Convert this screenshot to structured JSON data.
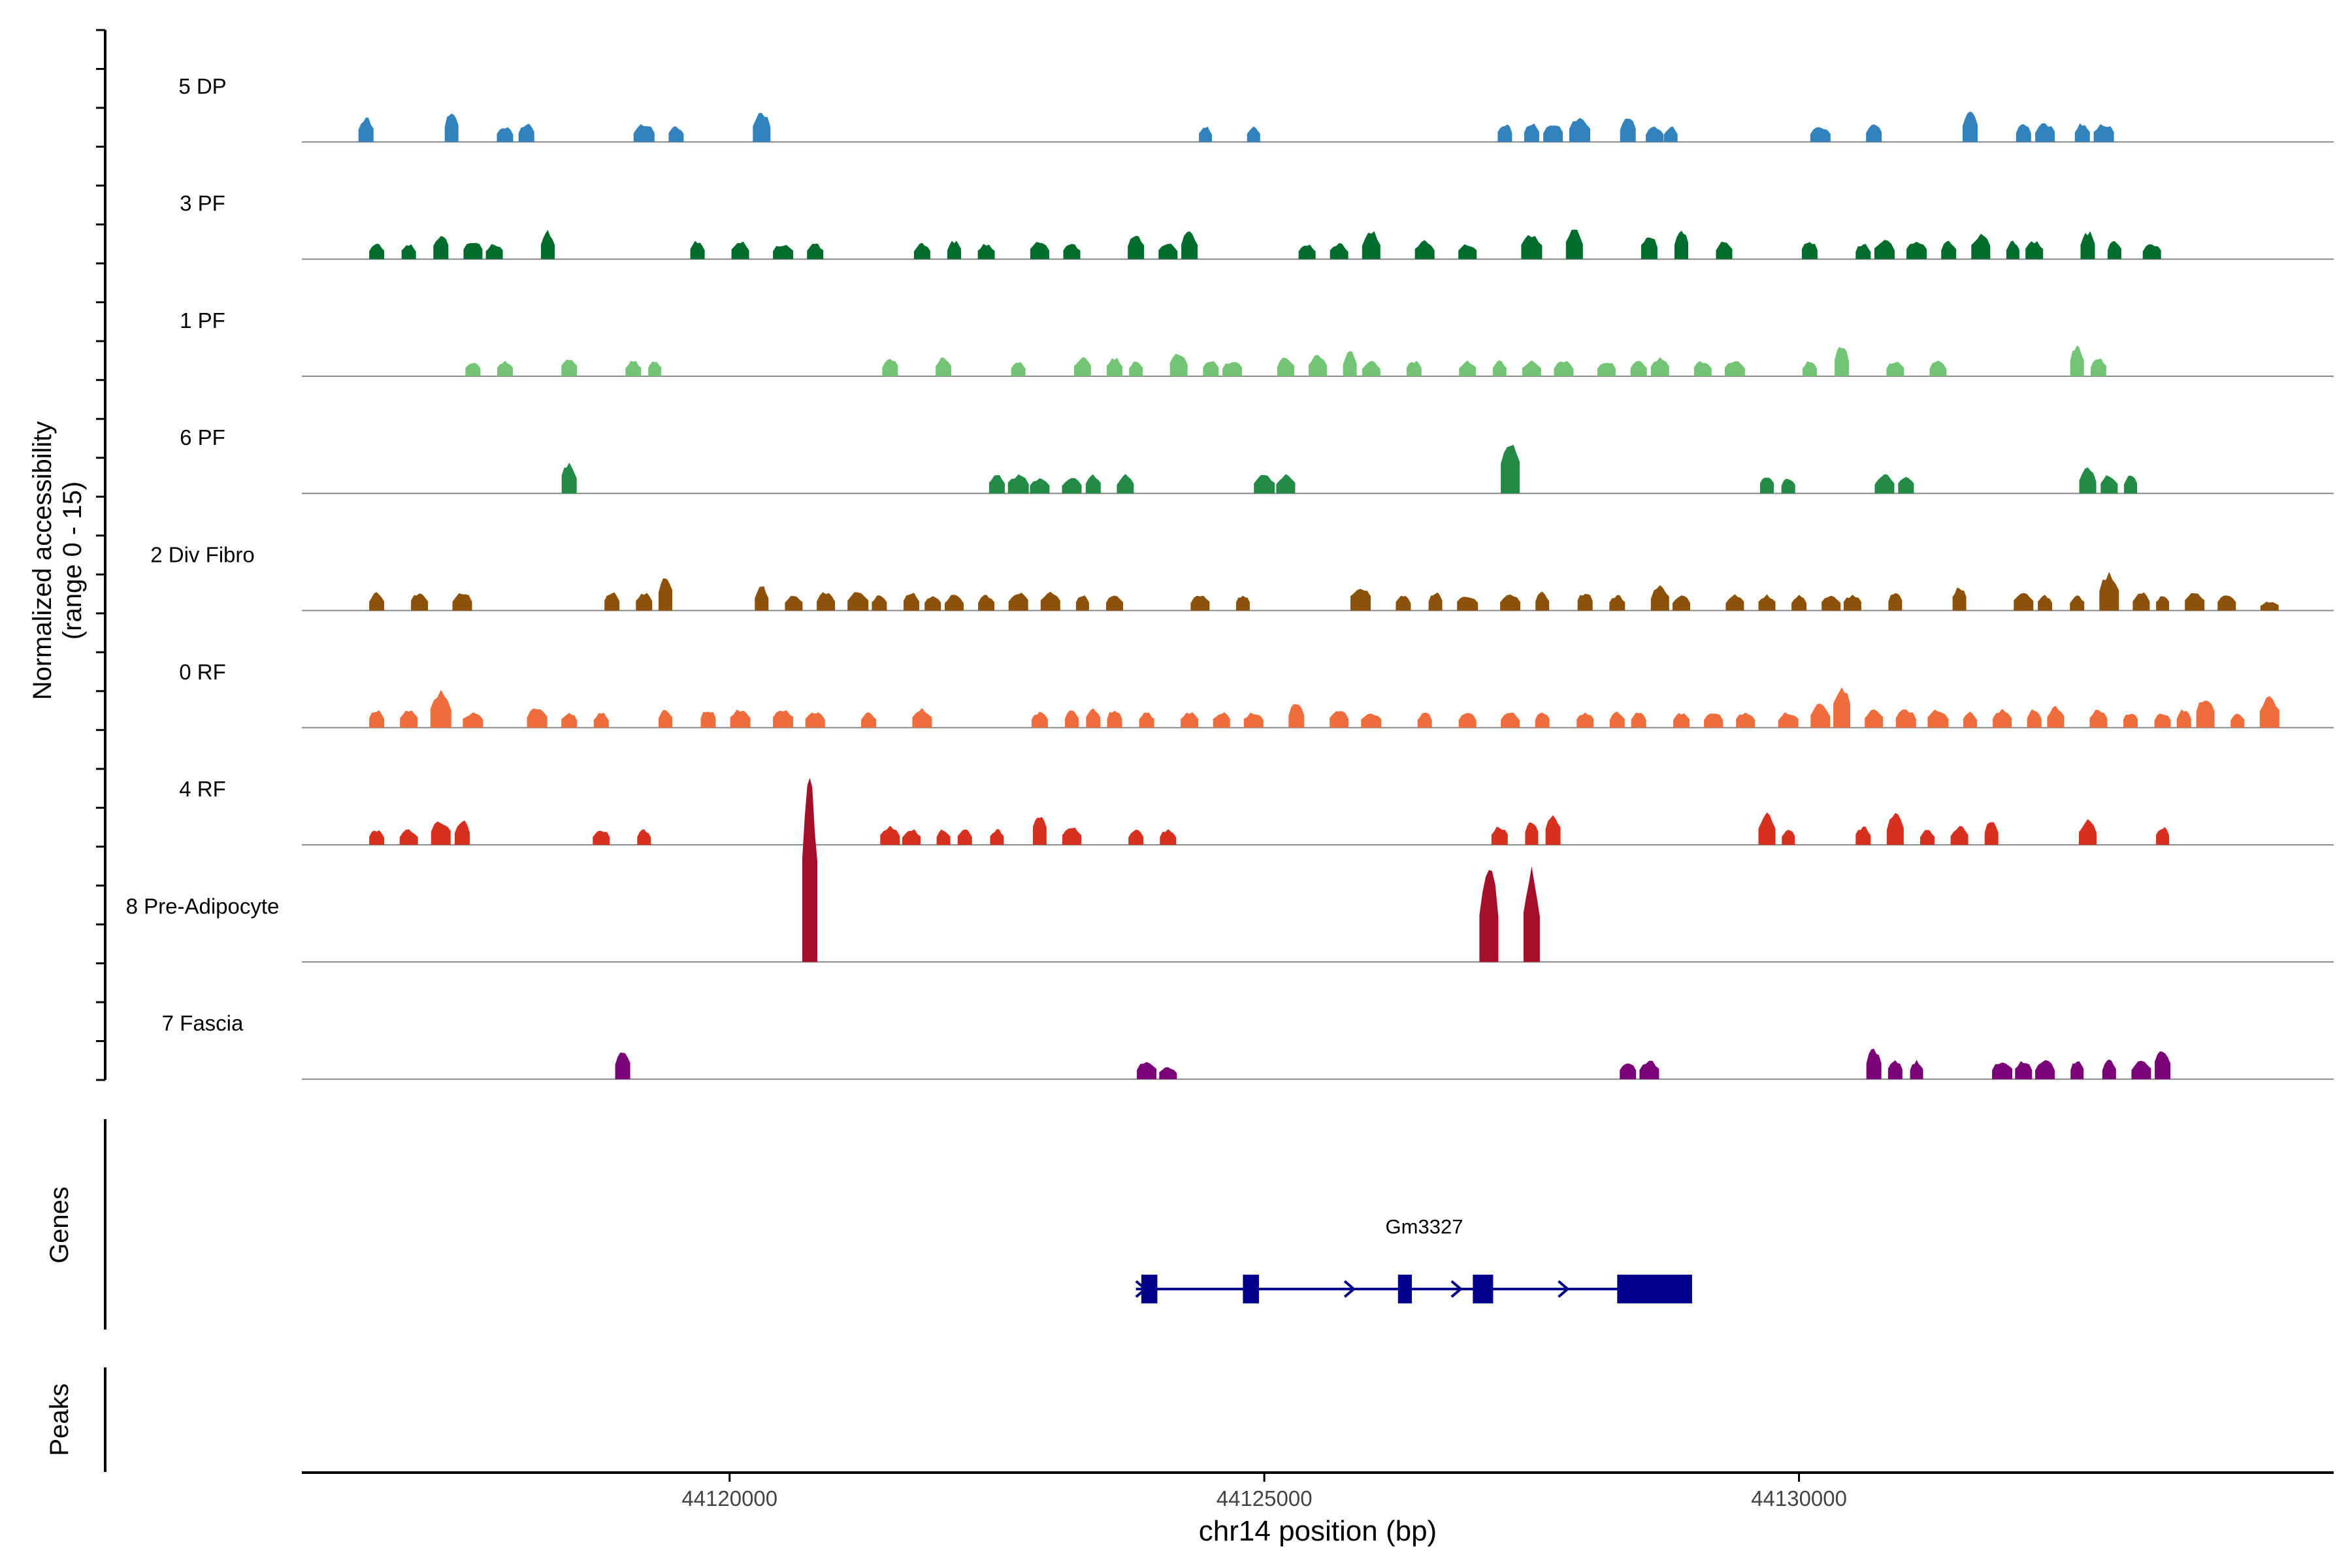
{
  "chart_data": {
    "type": "area",
    "title": "",
    "ylabel": "Normalized accessibility",
    "ylabel_range": "(range 0 - 15)",
    "ylim": [
      0,
      15
    ],
    "xlabel": "chr14 position (bp)",
    "xlim": [
      44116000,
      44135000
    ],
    "x_ticks": [
      44120000,
      44125000,
      44130000
    ],
    "x_tick_labels": [
      "44120000",
      "44125000",
      "44130000"
    ],
    "tracks": [
      {
        "name": "5 DP",
        "color": "#3182BD",
        "seed": 11,
        "peaks": [
          [
            44116600,
            4
          ],
          [
            44117400,
            5
          ],
          [
            44117900,
            2.5
          ],
          [
            44118100,
            3
          ],
          [
            44119200,
            3
          ],
          [
            44119500,
            2.5
          ],
          [
            44120300,
            5
          ],
          [
            44124450,
            2.5
          ],
          [
            44124900,
            2.5
          ],
          [
            44127250,
            3
          ],
          [
            44127500,
            3
          ],
          [
            44127700,
            3
          ],
          [
            44127950,
            4
          ],
          [
            44128400,
            4
          ],
          [
            44128650,
            2.5
          ],
          [
            44128800,
            2.5
          ],
          [
            44130200,
            2.5
          ],
          [
            44130700,
            3
          ],
          [
            44131600,
            5
          ],
          [
            44132100,
            3
          ],
          [
            44132300,
            3
          ],
          [
            44132650,
            3
          ],
          [
            44132850,
            3
          ]
        ]
      },
      {
        "name": "3 PF",
        "color": "#006D2C",
        "seed": 23,
        "peaks": [
          [
            44116700,
            2.5
          ],
          [
            44117000,
            2.5
          ],
          [
            44117300,
            4
          ],
          [
            44117600,
            3
          ],
          [
            44117800,
            2.5
          ],
          [
            44118300,
            4.5
          ],
          [
            44119700,
            3
          ],
          [
            44120100,
            3
          ],
          [
            44120500,
            2.5
          ],
          [
            44120800,
            2.5
          ],
          [
            44121800,
            2.5
          ],
          [
            44122100,
            3
          ],
          [
            44122400,
            2.5
          ],
          [
            44122900,
            3
          ],
          [
            44123200,
            2.5
          ],
          [
            44123800,
            4
          ],
          [
            44124100,
            2.5
          ],
          [
            44124300,
            4.5
          ],
          [
            44125400,
            2.5
          ],
          [
            44125700,
            2.5
          ],
          [
            44126000,
            4.5
          ],
          [
            44126500,
            3
          ],
          [
            44126900,
            2.5
          ],
          [
            44127500,
            4
          ],
          [
            44127900,
            5
          ],
          [
            44128600,
            4
          ],
          [
            44128900,
            5
          ],
          [
            44129300,
            3
          ],
          [
            44130100,
            3
          ],
          [
            44130600,
            2.5
          ],
          [
            44130800,
            3
          ],
          [
            44131100,
            3
          ],
          [
            44131400,
            3
          ],
          [
            44131700,
            4
          ],
          [
            44132000,
            3
          ],
          [
            44132200,
            3
          ],
          [
            44132700,
            4.5
          ],
          [
            44132950,
            3
          ],
          [
            44133300,
            2.5
          ]
        ]
      },
      {
        "name": "1 PF",
        "color": "#74C476",
        "seed": 37,
        "peaks": [
          [
            44117600,
            2.5
          ],
          [
            44117900,
            2.5
          ],
          [
            44118500,
            3
          ],
          [
            44119100,
            2.5
          ],
          [
            44119300,
            2.5
          ],
          [
            44121500,
            3
          ],
          [
            44122000,
            3
          ],
          [
            44122700,
            2.5
          ],
          [
            44123300,
            3
          ],
          [
            44123600,
            3
          ],
          [
            44123800,
            2.5
          ],
          [
            44124200,
            4
          ],
          [
            44124500,
            2.5
          ],
          [
            44124700,
            2.5
          ],
          [
            44125200,
            3
          ],
          [
            44125500,
            3.5
          ],
          [
            44125800,
            4
          ],
          [
            44126000,
            2.5
          ],
          [
            44126400,
            2.5
          ],
          [
            44126900,
            2.5
          ],
          [
            44127200,
            2.5
          ],
          [
            44127500,
            2.5
          ],
          [
            44127800,
            2.5
          ],
          [
            44128200,
            2.5
          ],
          [
            44128500,
            2.5
          ],
          [
            44128700,
            3
          ],
          [
            44129100,
            2.5
          ],
          [
            44129400,
            2.5
          ],
          [
            44130100,
            2.5
          ],
          [
            44130400,
            5
          ],
          [
            44130900,
            2.5
          ],
          [
            44131300,
            2.5
          ],
          [
            44132600,
            5
          ],
          [
            44132800,
            3
          ]
        ]
      },
      {
        "name": "6 PF",
        "color": "#238B45",
        "seed": 41,
        "peaks": [
          [
            44118500,
            5
          ],
          [
            44122500,
            3
          ],
          [
            44122700,
            3
          ],
          [
            44122900,
            2.5
          ],
          [
            44123200,
            2.5
          ],
          [
            44123400,
            3
          ],
          [
            44123700,
            3
          ],
          [
            44125000,
            3
          ],
          [
            44125200,
            3
          ],
          [
            44127300,
            9
          ],
          [
            44129700,
            3
          ],
          [
            44129900,
            2.5
          ],
          [
            44130800,
            3
          ],
          [
            44131000,
            3
          ],
          [
            44132700,
            4
          ],
          [
            44132900,
            3
          ],
          [
            44133100,
            3
          ]
        ]
      },
      {
        "name": "2 Div Fibro",
        "color": "#8C510A",
        "seed": 53,
        "peaks": [
          [
            44116700,
            3
          ],
          [
            44117100,
            3
          ],
          [
            44117500,
            3
          ],
          [
            44118900,
            3
          ],
          [
            44119200,
            3
          ],
          [
            44119400,
            6
          ],
          [
            44120300,
            4
          ],
          [
            44120600,
            2.5
          ],
          [
            44120900,
            3
          ],
          [
            44121200,
            3
          ],
          [
            44121400,
            2.5
          ],
          [
            44121700,
            3
          ],
          [
            44121900,
            2.5
          ],
          [
            44122100,
            2.5
          ],
          [
            44122400,
            2.5
          ],
          [
            44122700,
            3
          ],
          [
            44123000,
            3
          ],
          [
            44123300,
            2.5
          ],
          [
            44123600,
            2.5
          ],
          [
            44124400,
            2.5
          ],
          [
            44124800,
            2.5
          ],
          [
            44125900,
            4
          ],
          [
            44126300,
            2.5
          ],
          [
            44126600,
            3
          ],
          [
            44126900,
            2.5
          ],
          [
            44127300,
            2.5
          ],
          [
            44127600,
            3
          ],
          [
            44128000,
            3
          ],
          [
            44128300,
            2.5
          ],
          [
            44128700,
            4
          ],
          [
            44128900,
            2.5
          ],
          [
            44129400,
            2.5
          ],
          [
            44129700,
            2.5
          ],
          [
            44130000,
            2.5
          ],
          [
            44130300,
            2.5
          ],
          [
            44130500,
            2.5
          ],
          [
            44130900,
            3
          ],
          [
            44131500,
            4
          ],
          [
            44132100,
            3
          ],
          [
            44132300,
            2.5
          ],
          [
            44132600,
            2.5
          ],
          [
            44132900,
            6
          ],
          [
            44133200,
            3
          ],
          [
            44133400,
            2.5
          ],
          [
            44133700,
            3
          ],
          [
            44134000,
            2.5
          ],
          [
            44134400,
            1.5
          ]
        ]
      },
      {
        "name": "0 RF",
        "color": "#EF6C3D",
        "seed": 67,
        "peaks": [
          [
            44116700,
            3
          ],
          [
            44117000,
            3
          ],
          [
            44117300,
            6
          ],
          [
            44117600,
            2.5
          ],
          [
            44118200,
            3.5
          ],
          [
            44118500,
            2.5
          ],
          [
            44118800,
            2.5
          ],
          [
            44119400,
            3
          ],
          [
            44119800,
            3
          ],
          [
            44120100,
            3
          ],
          [
            44120500,
            3
          ],
          [
            44120800,
            2.5
          ],
          [
            44121300,
            2.5
          ],
          [
            44121800,
            3
          ],
          [
            44122900,
            2.5
          ],
          [
            44123200,
            3
          ],
          [
            44123400,
            3
          ],
          [
            44123600,
            3
          ],
          [
            44123900,
            2.5
          ],
          [
            44124300,
            2.5
          ],
          [
            44124600,
            2.5
          ],
          [
            44124900,
            2.5
          ],
          [
            44125300,
            4
          ],
          [
            44125700,
            3
          ],
          [
            44126000,
            2.5
          ],
          [
            44126500,
            2.5
          ],
          [
            44126900,
            2.5
          ],
          [
            44127300,
            2.5
          ],
          [
            44127600,
            2.5
          ],
          [
            44128000,
            2.5
          ],
          [
            44128300,
            2.5
          ],
          [
            44128500,
            2.5
          ],
          [
            44128900,
            2.5
          ],
          [
            44129200,
            2.5
          ],
          [
            44129500,
            2.5
          ],
          [
            44129900,
            2.5
          ],
          [
            44130200,
            4
          ],
          [
            44130400,
            7
          ],
          [
            44130700,
            3
          ],
          [
            44131000,
            3
          ],
          [
            44131300,
            3
          ],
          [
            44131600,
            2.5
          ],
          [
            44131900,
            3
          ],
          [
            44132200,
            3
          ],
          [
            44132400,
            3.5
          ],
          [
            44132800,
            3
          ],
          [
            44133100,
            2.5
          ],
          [
            44133400,
            2.5
          ],
          [
            44133600,
            3
          ],
          [
            44133800,
            5
          ],
          [
            44134100,
            2.5
          ],
          [
            44134400,
            5
          ]
        ]
      },
      {
        "name": "4 RF",
        "color": "#D7301F",
        "seed": 79,
        "peaks": [
          [
            44116700,
            2.5
          ],
          [
            44117000,
            2.5
          ],
          [
            44117300,
            4
          ],
          [
            44117500,
            4
          ],
          [
            44118800,
            2.5
          ],
          [
            44119200,
            2.5
          ],
          [
            44121500,
            3
          ],
          [
            44121700,
            2.5
          ],
          [
            44122000,
            2.5
          ],
          [
            44122200,
            2.5
          ],
          [
            44122500,
            2.5
          ],
          [
            44122900,
            5
          ],
          [
            44123200,
            3
          ],
          [
            44123800,
            2.5
          ],
          [
            44124100,
            2.5
          ],
          [
            44127200,
            3
          ],
          [
            44127500,
            4
          ],
          [
            44127700,
            5
          ],
          [
            44129700,
            5
          ],
          [
            44129900,
            2.5
          ],
          [
            44130600,
            3
          ],
          [
            44130900,
            5
          ],
          [
            44131200,
            2.5
          ],
          [
            44131500,
            3
          ],
          [
            44131800,
            4
          ],
          [
            44132700,
            4
          ],
          [
            44133400,
            3
          ]
        ]
      },
      {
        "name": "8 Pre-Adipocyte",
        "color": "#A50F27",
        "seed": 83,
        "peaks": [
          [
            44120750,
            30
          ],
          [
            44127100,
            15
          ],
          [
            44127500,
            15
          ]
        ]
      },
      {
        "name": "7 Fascia",
        "color": "#7A0177",
        "seed": 97,
        "peaks": [
          [
            44119000,
            5
          ],
          [
            44123900,
            3
          ],
          [
            44124100,
            2
          ],
          [
            44128400,
            3
          ],
          [
            44128600,
            3
          ],
          [
            44130700,
            5
          ],
          [
            44130900,
            3
          ],
          [
            44131100,
            3
          ],
          [
            44131900,
            3
          ],
          [
            44132100,
            3
          ],
          [
            44132300,
            3
          ],
          [
            44132600,
            3
          ],
          [
            44132900,
            3
          ],
          [
            44133200,
            3
          ],
          [
            44133400,
            5
          ]
        ]
      }
    ],
    "genes": {
      "label": "Genes",
      "name": "Gm3327",
      "color": "#00008B",
      "start": 44123800,
      "end": 44129000,
      "strand": "+",
      "exons": [
        [
          44123850,
          44124000
        ],
        [
          44124800,
          44124950
        ],
        [
          44126250,
          44126380
        ],
        [
          44126950,
          44127140
        ],
        [
          44128300,
          44129000
        ]
      ],
      "arrows": [
        44123850,
        44125800,
        44126800,
        44127800
      ]
    },
    "peaks_track": {
      "label": "Peaks",
      "regions": []
    }
  }
}
